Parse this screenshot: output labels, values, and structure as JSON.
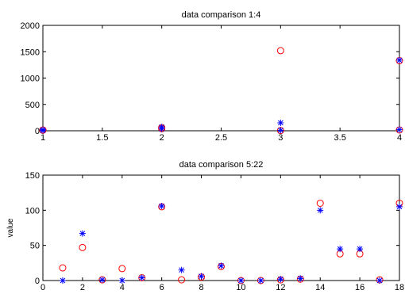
{
  "chart_data": [
    {
      "type": "scatter",
      "title": "data comparison 1:4",
      "xlabel": "",
      "ylabel": "",
      "xlim": [
        1,
        4
      ],
      "ylim": [
        0,
        2000
      ],
      "xticks": [
        "1",
        "1.5",
        "2",
        "2.5",
        "3",
        "3.5",
        "4"
      ],
      "xtick_values": [
        1,
        1.5,
        2,
        2.5,
        3,
        3.5,
        4
      ],
      "yticks": [
        "0",
        "500",
        "1000",
        "1500",
        "2000"
      ],
      "ytick_values": [
        0,
        500,
        1000,
        1500,
        2000
      ],
      "grid": false,
      "series": [
        {
          "marker": "o",
          "color": "#ff0000",
          "points": [
            [
              1,
              10
            ],
            [
              1,
              15
            ],
            [
              2,
              40
            ],
            [
              2,
              60
            ],
            [
              3,
              1520
            ],
            [
              3,
              5
            ],
            [
              4,
              1330
            ],
            [
              4,
              15
            ]
          ]
        },
        {
          "marker": "*",
          "color": "#0000ff",
          "points": [
            [
              1,
              5
            ],
            [
              1,
              20
            ],
            [
              2,
              35
            ],
            [
              2,
              70
            ],
            [
              3,
              150
            ],
            [
              3,
              10
            ],
            [
              4,
              1340
            ],
            [
              4,
              20
            ]
          ]
        }
      ]
    },
    {
      "type": "scatter",
      "title": "data comparison 5:22",
      "xlabel": "",
      "ylabel": "value",
      "xlim": [
        0,
        18
      ],
      "ylim": [
        0,
        150
      ],
      "xticks": [
        "0",
        "2",
        "4",
        "6",
        "8",
        "10",
        "12",
        "14",
        "16",
        "18"
      ],
      "xtick_values": [
        0,
        2,
        4,
        6,
        8,
        10,
        12,
        14,
        16,
        18
      ],
      "yticks": [
        "0",
        "50",
        "100",
        "150"
      ],
      "ytick_values": [
        0,
        50,
        100,
        150
      ],
      "grid": false,
      "series": [
        {
          "marker": "o",
          "color": "#ff0000",
          "points": [
            [
              1,
              18
            ],
            [
              2,
              47
            ],
            [
              3,
              1
            ],
            [
              4,
              17
            ],
            [
              5,
              4
            ],
            [
              6,
              105
            ],
            [
              7,
              1
            ],
            [
              8,
              5
            ],
            [
              9,
              20
            ],
            [
              10,
              0
            ],
            [
              11,
              0
            ],
            [
              12,
              1
            ],
            [
              13,
              2
            ],
            [
              14,
              110
            ],
            [
              15,
              38
            ],
            [
              16,
              38
            ],
            [
              17,
              1
            ],
            [
              18,
              110
            ]
          ]
        },
        {
          "marker": "*",
          "color": "#0000ff",
          "points": [
            [
              1,
              0
            ],
            [
              2,
              67
            ],
            [
              3,
              1
            ],
            [
              4,
              0
            ],
            [
              5,
              4
            ],
            [
              6,
              106
            ],
            [
              7,
              15
            ],
            [
              8,
              6
            ],
            [
              9,
              21
            ],
            [
              10,
              0
            ],
            [
              11,
              0
            ],
            [
              12,
              2
            ],
            [
              13,
              3
            ],
            [
              14,
              100
            ],
            [
              15,
              45
            ],
            [
              16,
              45
            ],
            [
              17,
              0
            ],
            [
              18,
              105
            ]
          ]
        }
      ]
    }
  ]
}
